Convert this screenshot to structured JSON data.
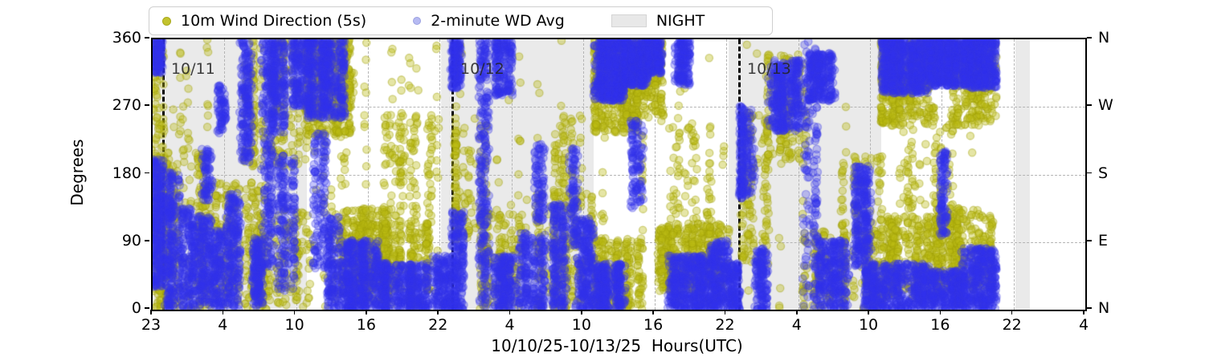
{
  "legend": {
    "items": [
      {
        "label": "10m Wind Direction (5s)",
        "marker": "dot",
        "color": "#bcbd22"
      },
      {
        "label": "2-minute WD Avg",
        "marker": "dot",
        "color": "#9aa0e8"
      },
      {
        "label": "NIGHT",
        "marker": "patch",
        "color": "#e8e8e8"
      }
    ]
  },
  "axes": {
    "ylabel": "Degrees",
    "xlabel": "10/10/25-10/13/25  Hours(UTC)",
    "ylim": [
      0,
      360
    ],
    "ytick_labels": [
      "0",
      "90",
      "180",
      "270",
      "360"
    ],
    "ytick_values": [
      0,
      90,
      180,
      270,
      360
    ],
    "right_tick_labels": [
      "N",
      "E",
      "S",
      "W",
      "N"
    ],
    "right_tick_values": [
      0,
      90,
      180,
      270,
      360
    ],
    "xtick_labels": [
      "23",
      "4",
      "10",
      "16",
      "22",
      "4",
      "10",
      "16",
      "22",
      "4",
      "10",
      "16",
      "22",
      "4"
    ]
  },
  "chart_data": {
    "type": "scatter",
    "title": "",
    "xlabel": "10/10/25-10/13/25  Hours(UTC)",
    "ylabel": "Degrees",
    "ylim": [
      0,
      360
    ],
    "grid": true,
    "legend_position": "top",
    "x_axis_note_labels": [
      "23",
      "4",
      "10",
      "16",
      "22",
      "4",
      "10",
      "16",
      "22",
      "4",
      "10",
      "16",
      "22",
      "4"
    ],
    "night_bands": [
      [
        0.0,
        0.1654
      ],
      [
        0.3092,
        0.4729
      ],
      [
        0.6175,
        0.7812
      ],
      [
        0.9251,
        0.9406
      ]
    ],
    "date_lines": [
      {
        "label": "10/11",
        "t": 0.0103
      },
      {
        "label": "10/12",
        "t": 0.3204
      },
      {
        "label": "10/13",
        "t": 0.6279
      }
    ],
    "cluster_format": [
      "t0_frac",
      "t1_frac",
      "deg_min",
      "deg_max",
      "n_points"
    ],
    "series": [
      {
        "name": "10m Wind Direction (5s)",
        "style": {
          "fill": "rgba(186,186,18,0.38)",
          "stroke": "rgba(160,160,8,0.45)",
          "radius": 4.6
        },
        "clusters": [
          [
            0.0,
            0.012,
            0,
            360,
            140
          ],
          [
            0.005,
            0.055,
            0,
            210,
            260
          ],
          [
            0.05,
            0.125,
            0,
            170,
            300
          ],
          [
            0.095,
            0.165,
            190,
            360,
            220
          ],
          [
            0.115,
            0.17,
            0,
            130,
            160
          ],
          [
            0.165,
            0.215,
            230,
            360,
            420
          ],
          [
            0.195,
            0.255,
            10,
            135,
            380
          ],
          [
            0.215,
            0.305,
            25,
            115,
            340
          ],
          [
            0.245,
            0.315,
            110,
            260,
            130
          ],
          [
            0.165,
            0.32,
            0,
            360,
            90
          ],
          [
            0.322,
            0.36,
            90,
            260,
            120
          ],
          [
            0.352,
            0.4,
            0,
            130,
            170
          ],
          [
            0.398,
            0.473,
            0,
            155,
            240
          ],
          [
            0.42,
            0.47,
            150,
            260,
            70
          ],
          [
            0.473,
            0.52,
            235,
            360,
            380
          ],
          [
            0.473,
            0.525,
            0,
            95,
            260
          ],
          [
            0.503,
            0.548,
            250,
            360,
            260
          ],
          [
            0.542,
            0.618,
            25,
            115,
            480
          ],
          [
            0.52,
            0.62,
            100,
            250,
            90
          ],
          [
            0.62,
            0.66,
            60,
            260,
            140
          ],
          [
            0.658,
            0.7,
            200,
            340,
            160
          ],
          [
            0.698,
            0.781,
            0,
            105,
            230
          ],
          [
            0.738,
            0.781,
            95,
            205,
            80
          ],
          [
            0.781,
            0.842,
            245,
            360,
            420
          ],
          [
            0.781,
            0.848,
            15,
            125,
            380
          ],
          [
            0.8,
            0.862,
            115,
            260,
            100
          ],
          [
            0.838,
            0.904,
            25,
            135,
            330
          ],
          [
            0.858,
            0.904,
            245,
            360,
            270
          ],
          [
            0.0,
            0.904,
            0,
            360,
            260
          ]
        ]
      },
      {
        "name": "2-minute WD Avg",
        "style": {
          "fill": "rgba(45,45,238,0.28)",
          "stroke": "rgba(55,55,225,0.35)",
          "radius": 4.8
        },
        "clusters": [
          [
            0.0,
            0.012,
            30,
            200,
            330
          ],
          [
            0.0,
            0.01,
            315,
            360,
            130
          ],
          [
            0.013,
            0.03,
            0,
            185,
            260
          ],
          [
            0.03,
            0.046,
            0,
            135,
            210
          ],
          [
            0.048,
            0.062,
            5,
            125,
            190
          ],
          [
            0.053,
            0.063,
            145,
            215,
            70
          ],
          [
            0.064,
            0.076,
            0,
            105,
            160
          ],
          [
            0.068,
            0.078,
            235,
            300,
            70
          ],
          [
            0.079,
            0.095,
            0,
            155,
            230
          ],
          [
            0.094,
            0.106,
            195,
            360,
            190
          ],
          [
            0.106,
            0.118,
            0,
            95,
            160
          ],
          [
            0.117,
            0.129,
            55,
            360,
            230
          ],
          [
            0.128,
            0.143,
            235,
            360,
            210
          ],
          [
            0.133,
            0.152,
            25,
            205,
            190
          ],
          [
            0.148,
            0.165,
            270,
            360,
            170
          ],
          [
            0.165,
            0.205,
            255,
            360,
            520
          ],
          [
            0.173,
            0.186,
            55,
            235,
            130
          ],
          [
            0.188,
            0.2,
            0,
            125,
            160
          ],
          [
            0.203,
            0.242,
            0,
            92,
            480
          ],
          [
            0.24,
            0.302,
            0,
            62,
            430
          ],
          [
            0.298,
            0.32,
            0,
            72,
            170
          ],
          [
            0.32,
            0.333,
            0,
            132,
            210
          ],
          [
            0.319,
            0.331,
            295,
            360,
            150
          ],
          [
            0.35,
            0.36,
            0,
            360,
            260
          ],
          [
            0.363,
            0.39,
            0,
            72,
            210
          ],
          [
            0.366,
            0.386,
            285,
            360,
            170
          ],
          [
            0.393,
            0.422,
            0,
            102,
            230
          ],
          [
            0.41,
            0.421,
            115,
            222,
            90
          ],
          [
            0.428,
            0.446,
            0,
            142,
            210
          ],
          [
            0.447,
            0.456,
            85,
            215,
            95
          ],
          [
            0.454,
            0.473,
            0,
            122,
            230
          ],
          [
            0.473,
            0.506,
            278,
            360,
            520
          ],
          [
            0.473,
            0.506,
            0,
            62,
            320
          ],
          [
            0.505,
            0.531,
            298,
            360,
            420
          ],
          [
            0.513,
            0.526,
            135,
            252,
            110
          ],
          [
            0.528,
            0.546,
            315,
            360,
            210
          ],
          [
            0.551,
            0.601,
            0,
            72,
            470
          ],
          [
            0.558,
            0.576,
            298,
            360,
            160
          ],
          [
            0.598,
            0.618,
            0,
            92,
            260
          ],
          [
            0.617,
            0.629,
            0,
            62,
            130
          ],
          [
            0.63,
            0.646,
            148,
            272,
            210
          ],
          [
            0.646,
            0.659,
            0,
            82,
            150
          ],
          [
            0.66,
            0.696,
            238,
            332,
            370
          ],
          [
            0.698,
            0.713,
            0,
            360,
            160
          ],
          [
            0.703,
            0.731,
            278,
            342,
            260
          ],
          [
            0.713,
            0.746,
            0,
            92,
            310
          ],
          [
            0.753,
            0.771,
            58,
            192,
            260
          ],
          [
            0.763,
            0.781,
            0,
            62,
            160
          ],
          [
            0.781,
            0.831,
            288,
            360,
            620
          ],
          [
            0.781,
            0.831,
            0,
            62,
            360
          ],
          [
            0.829,
            0.871,
            298,
            360,
            520
          ],
          [
            0.833,
            0.871,
            0,
            52,
            310
          ],
          [
            0.843,
            0.856,
            98,
            212,
            100
          ],
          [
            0.868,
            0.904,
            295,
            360,
            470
          ],
          [
            0.868,
            0.904,
            0,
            82,
            370
          ]
        ]
      }
    ],
    "colors": {
      "raw": "#bcbd22",
      "avg": "#2d2dee",
      "night": "#eaeaea"
    }
  }
}
